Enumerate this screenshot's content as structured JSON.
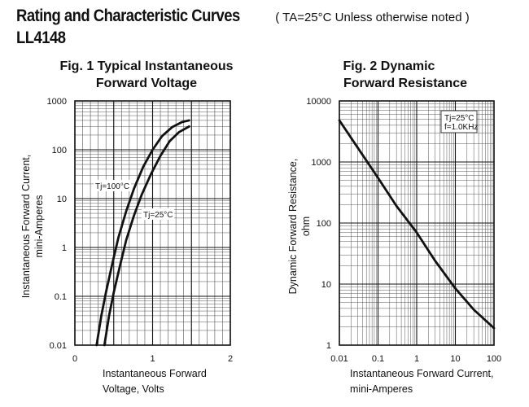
{
  "header": {
    "title": "Rating and Characteristic Curves",
    "note": "( TA=25°C Unless otherwise noted )",
    "part": "LL4148"
  },
  "chart_data": [
    {
      "type": "line",
      "title_line1": "Fig. 1 Typical Instantaneous",
      "title_line2": "Forward Voltage",
      "ylabel_line1": "Instantaneous Forward Current,",
      "ylabel_line2": "mini-Amperes",
      "xlabel_line1": "Instantaneous Forward",
      "xlabel_line2": "Voltage, Volts",
      "xlim": [
        0,
        2
      ],
      "ylim": [
        0.01,
        1000
      ],
      "yscale": "log",
      "xticks": [
        "0",
        "1",
        "2"
      ],
      "yticks": [
        "1000",
        "100",
        "10",
        "1",
        "0.1",
        "0.01"
      ],
      "grid": true,
      "series": [
        {
          "name": "Tj=100°C",
          "x": [
            0.28,
            0.34,
            0.4,
            0.48,
            0.56,
            0.66,
            0.76,
            0.88,
            1.0,
            1.12,
            1.25,
            1.38,
            1.47
          ],
          "y": [
            0.01,
            0.04,
            0.12,
            0.45,
            1.6,
            5.5,
            16,
            45,
            100,
            190,
            290,
            370,
            400
          ]
        },
        {
          "name": "Tj=25°C",
          "x": [
            0.38,
            0.44,
            0.5,
            0.58,
            0.66,
            0.76,
            0.86,
            0.98,
            1.1,
            1.22,
            1.34,
            1.47
          ],
          "y": [
            0.01,
            0.04,
            0.12,
            0.42,
            1.4,
            4.5,
            12,
            32,
            75,
            150,
            230,
            300
          ]
        }
      ]
    },
    {
      "type": "line",
      "title_line1": "Fig. 2 Dynamic",
      "title_line2": "Forward Resistance",
      "ylabel_line1": "Dynamic Forward Resistance,",
      "ylabel_line2": "ohm",
      "xlabel_line1": "Instantaneous Forward Current,",
      "xlabel_line2": "mini-Amperes",
      "xlim": [
        0.01,
        100
      ],
      "ylim": [
        1,
        10000
      ],
      "xscale": "log",
      "yscale": "log",
      "xticks": [
        "0.01",
        "0.1",
        "1",
        "10",
        "100"
      ],
      "yticks": [
        "10000",
        "1000",
        "100",
        "10",
        "1"
      ],
      "grid": true,
      "legend_line1": "Tj=25°C",
      "legend_line2": "f=1.0KHz",
      "series": [
        {
          "x": [
            0.01,
            0.03,
            0.1,
            0.3,
            1,
            3,
            10,
            30,
            100
          ],
          "y": [
            4800,
            1700,
            550,
            190,
            70,
            24,
            8.5,
            3.8,
            1.9
          ]
        }
      ]
    }
  ]
}
